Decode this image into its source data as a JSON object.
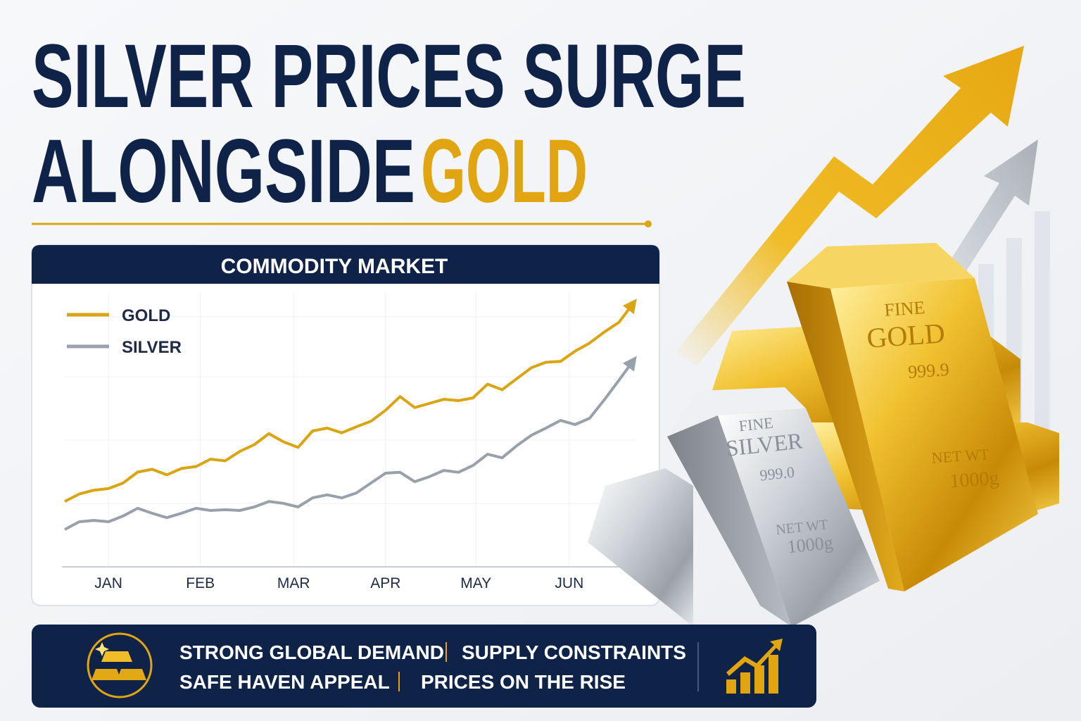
{
  "header": {
    "title_line1": "SILVER PRICES SURGE",
    "title_line2": "ALONGSIDE",
    "title_highlight": "GOLD"
  },
  "chart_data": {
    "type": "line",
    "title": "COMMODITY MARKET",
    "xlim": [
      0,
      39
    ],
    "xticks": [
      {
        "value": 3,
        "label": "JAN"
      },
      {
        "value": 9.3,
        "label": "FEB"
      },
      {
        "value": 15.7,
        "label": "MAR"
      },
      {
        "value": 22,
        "label": "APR"
      },
      {
        "value": 28.2,
        "label": "MAY"
      },
      {
        "value": 34.6,
        "label": "JUN"
      }
    ],
    "ylim": [
      0,
      100
    ],
    "grid": true,
    "series": [
      {
        "name": "GOLD",
        "color": "#d9a514",
        "values": [
          23.8,
          26.5,
          27.9,
          28.5,
          30.5,
          34.5,
          35.5,
          33.5,
          35.8,
          36.5,
          39.2,
          38.6,
          42,
          44.5,
          48.5,
          45.5,
          43.5,
          49.5,
          50.5,
          48.8,
          51,
          53,
          57,
          62,
          58,
          59.5,
          61,
          60.5,
          61.5,
          66.5,
          64.5,
          68.5,
          72.5,
          74.5,
          74.8,
          78.5,
          81.5,
          85.5,
          89,
          96
        ]
      },
      {
        "name": "SILVER",
        "color": "#98a1ab",
        "values": [
          13.6,
          16.4,
          16.9,
          16.4,
          18.5,
          21.3,
          19.5,
          17.9,
          19.5,
          21.3,
          20.5,
          20.8,
          20.5,
          21.8,
          23.8,
          23.1,
          21.8,
          25.1,
          26.2,
          25.1,
          26.9,
          30.5,
          34.1,
          34.4,
          31,
          32.8,
          35.1,
          34.4,
          36.9,
          41,
          39.7,
          44.1,
          47.9,
          50.5,
          53.3,
          51.8,
          54.1,
          60.8,
          67.9,
          75.1
        ]
      }
    ]
  },
  "footer": {
    "items": [
      "STRONG GLOBAL DEMAND",
      "SUPPLY CONSTRAINTS",
      "SAFE HAVEN APPEAL",
      "PRICES ON THE RISE"
    ]
  },
  "bars": {
    "gold": {
      "line1": "FINE",
      "line2": "GOLD",
      "purity": "999.9",
      "weight_label": "NET WT",
      "weight": "1000g"
    },
    "silver": {
      "line1": "FINE",
      "line2": "SILVER",
      "purity": "999.0",
      "weight_label": "NET WT",
      "weight": "1000g"
    }
  }
}
